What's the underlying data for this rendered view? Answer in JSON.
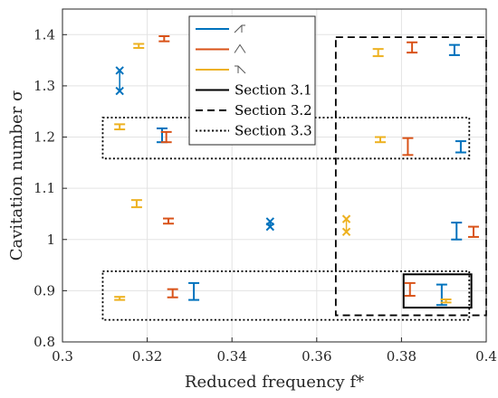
{
  "chart_data": {
    "type": "errorbar",
    "xlabel": "Reduced frequency f*",
    "ylabel": "Cavitation number σ",
    "xlim": [
      0.3,
      0.4
    ],
    "ylim": [
      0.8,
      1.45
    ],
    "xticks": [
      "0.3",
      "0.32",
      "0.34",
      "0.36",
      "0.38",
      "0.4"
    ],
    "yticks": [
      "0.8",
      "0.9",
      "1",
      "1.1",
      "1.2",
      "1.3",
      "1.4"
    ],
    "grid": true,
    "legend_position": "top-center",
    "series": [
      {
        "name": "",
        "color": "#0072bd",
        "glyph": "rising-edge-icon",
        "points": [
          {
            "x": 0.3135,
            "y": 1.31,
            "ylow": 1.29,
            "yhigh": 1.33,
            "marker": "x"
          },
          {
            "x": 0.3235,
            "y": 1.203,
            "ylow": 1.19,
            "yhigh": 1.217
          },
          {
            "x": 0.349,
            "y": 1.03,
            "ylow": 1.025,
            "yhigh": 1.035,
            "marker": "x"
          },
          {
            "x": 0.3925,
            "y": 1.37,
            "ylow": 1.36,
            "yhigh": 1.38
          },
          {
            "x": 0.394,
            "y": 1.182,
            "ylow": 1.17,
            "yhigh": 1.192
          },
          {
            "x": 0.393,
            "y": 1.02,
            "ylow": 1.0,
            "yhigh": 1.033
          },
          {
            "x": 0.331,
            "y": 0.898,
            "ylow": 0.882,
            "yhigh": 0.915
          },
          {
            "x": 0.3895,
            "y": 0.892,
            "ylow": 0.872,
            "yhigh": 0.912
          }
        ]
      },
      {
        "name": "",
        "color": "#d95319",
        "glyph": "peak-icon",
        "points": [
          {
            "x": 0.324,
            "y": 1.392,
            "ylow": 1.387,
            "yhigh": 1.397
          },
          {
            "x": 0.3245,
            "y": 1.2,
            "ylow": 1.19,
            "yhigh": 1.21
          },
          {
            "x": 0.325,
            "y": 1.036,
            "ylow": 1.031,
            "yhigh": 1.041
          },
          {
            "x": 0.326,
            "y": 0.895,
            "ylow": 0.887,
            "yhigh": 0.903
          },
          {
            "x": 0.3825,
            "y": 1.375,
            "ylow": 1.365,
            "yhigh": 1.385
          },
          {
            "x": 0.3815,
            "y": 1.18,
            "ylow": 1.165,
            "yhigh": 1.198
          },
          {
            "x": 0.382,
            "y": 0.903,
            "ylow": 0.89,
            "yhigh": 0.915
          },
          {
            "x": 0.397,
            "y": 1.015,
            "ylow": 1.005,
            "yhigh": 1.025
          }
        ]
      },
      {
        "name": "",
        "color": "#edb120",
        "glyph": "falling-edge-icon",
        "points": [
          {
            "x": 0.318,
            "y": 1.378,
            "ylow": 1.374,
            "yhigh": 1.382
          },
          {
            "x": 0.3135,
            "y": 1.22,
            "ylow": 1.215,
            "yhigh": 1.225
          },
          {
            "x": 0.3175,
            "y": 1.07,
            "ylow": 1.063,
            "yhigh": 1.077
          },
          {
            "x": 0.3135,
            "y": 0.885,
            "ylow": 0.882,
            "yhigh": 0.888
          },
          {
            "x": 0.3745,
            "y": 1.365,
            "ylow": 1.358,
            "yhigh": 1.372
          },
          {
            "x": 0.375,
            "y": 1.195,
            "ylow": 1.19,
            "yhigh": 1.2
          },
          {
            "x": 0.367,
            "y": 1.027,
            "ylow": 1.015,
            "yhigh": 1.04,
            "marker": "x"
          },
          {
            "x": 0.3905,
            "y": 0.88,
            "ylow": 0.877,
            "yhigh": 0.883
          }
        ]
      }
    ],
    "regions": [
      {
        "name": "Section 3.1",
        "style": "solid",
        "x": [
          0.3805,
          0.3965
        ],
        "y": [
          0.867,
          0.932
        ]
      },
      {
        "name": "Section 3.2",
        "style": "dashed",
        "x": [
          0.3645,
          0.4
        ],
        "y": [
          0.852,
          1.395
        ]
      },
      {
        "name": "Section 3.3",
        "style": "dotted",
        "x": [
          0.3095,
          0.396
        ],
        "y": [
          1.158,
          1.238
        ]
      },
      {
        "name": "Section 3.3",
        "style": "dotted",
        "x": [
          0.3095,
          0.396
        ],
        "y": [
          0.843,
          0.938
        ]
      }
    ],
    "legend": [
      {
        "label": "",
        "color": "#0072bd",
        "glyph": "rising-edge-icon"
      },
      {
        "label": "",
        "color": "#d95319",
        "glyph": "peak-icon"
      },
      {
        "label": "",
        "color": "#edb120",
        "glyph": "falling-edge-icon"
      },
      {
        "label": "Section 3.1",
        "color": "#000000",
        "style": "solid"
      },
      {
        "label": "Section 3.2",
        "color": "#000000",
        "style": "dashed"
      },
      {
        "label": "Section 3.3",
        "color": "#000000",
        "style": "dotted"
      }
    ]
  }
}
